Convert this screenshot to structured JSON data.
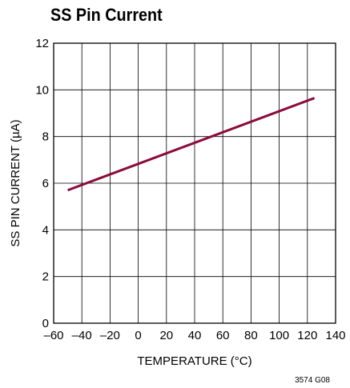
{
  "title": "SS Pin Current",
  "figure_code": "3574 G08",
  "colors": {
    "series": "#8b0b3a",
    "grid": "#000000"
  },
  "chart_data": {
    "type": "line",
    "title": "SS Pin Current",
    "xlabel": "TEMPERATURE (°C)",
    "ylabel": "SS PIN CURRENT (µA)",
    "xlim": [
      -60,
      140
    ],
    "ylim": [
      0,
      12
    ],
    "x_ticks": [
      -60,
      -40,
      -20,
      0,
      20,
      40,
      60,
      80,
      100,
      120,
      140
    ],
    "x_tick_labels": [
      "–60",
      "–40",
      "–20",
      "0",
      "20",
      "40",
      "60",
      "80",
      "100",
      "120",
      "140"
    ],
    "y_ticks": [
      0,
      2,
      4,
      6,
      8,
      10,
      12
    ],
    "y_tick_labels": [
      "0",
      "2",
      "4",
      "6",
      "8",
      "10",
      "12"
    ],
    "grid": true,
    "series": [
      {
        "x": [
          -50,
          125
        ],
        "y": [
          5.7,
          9.65
        ]
      }
    ]
  }
}
